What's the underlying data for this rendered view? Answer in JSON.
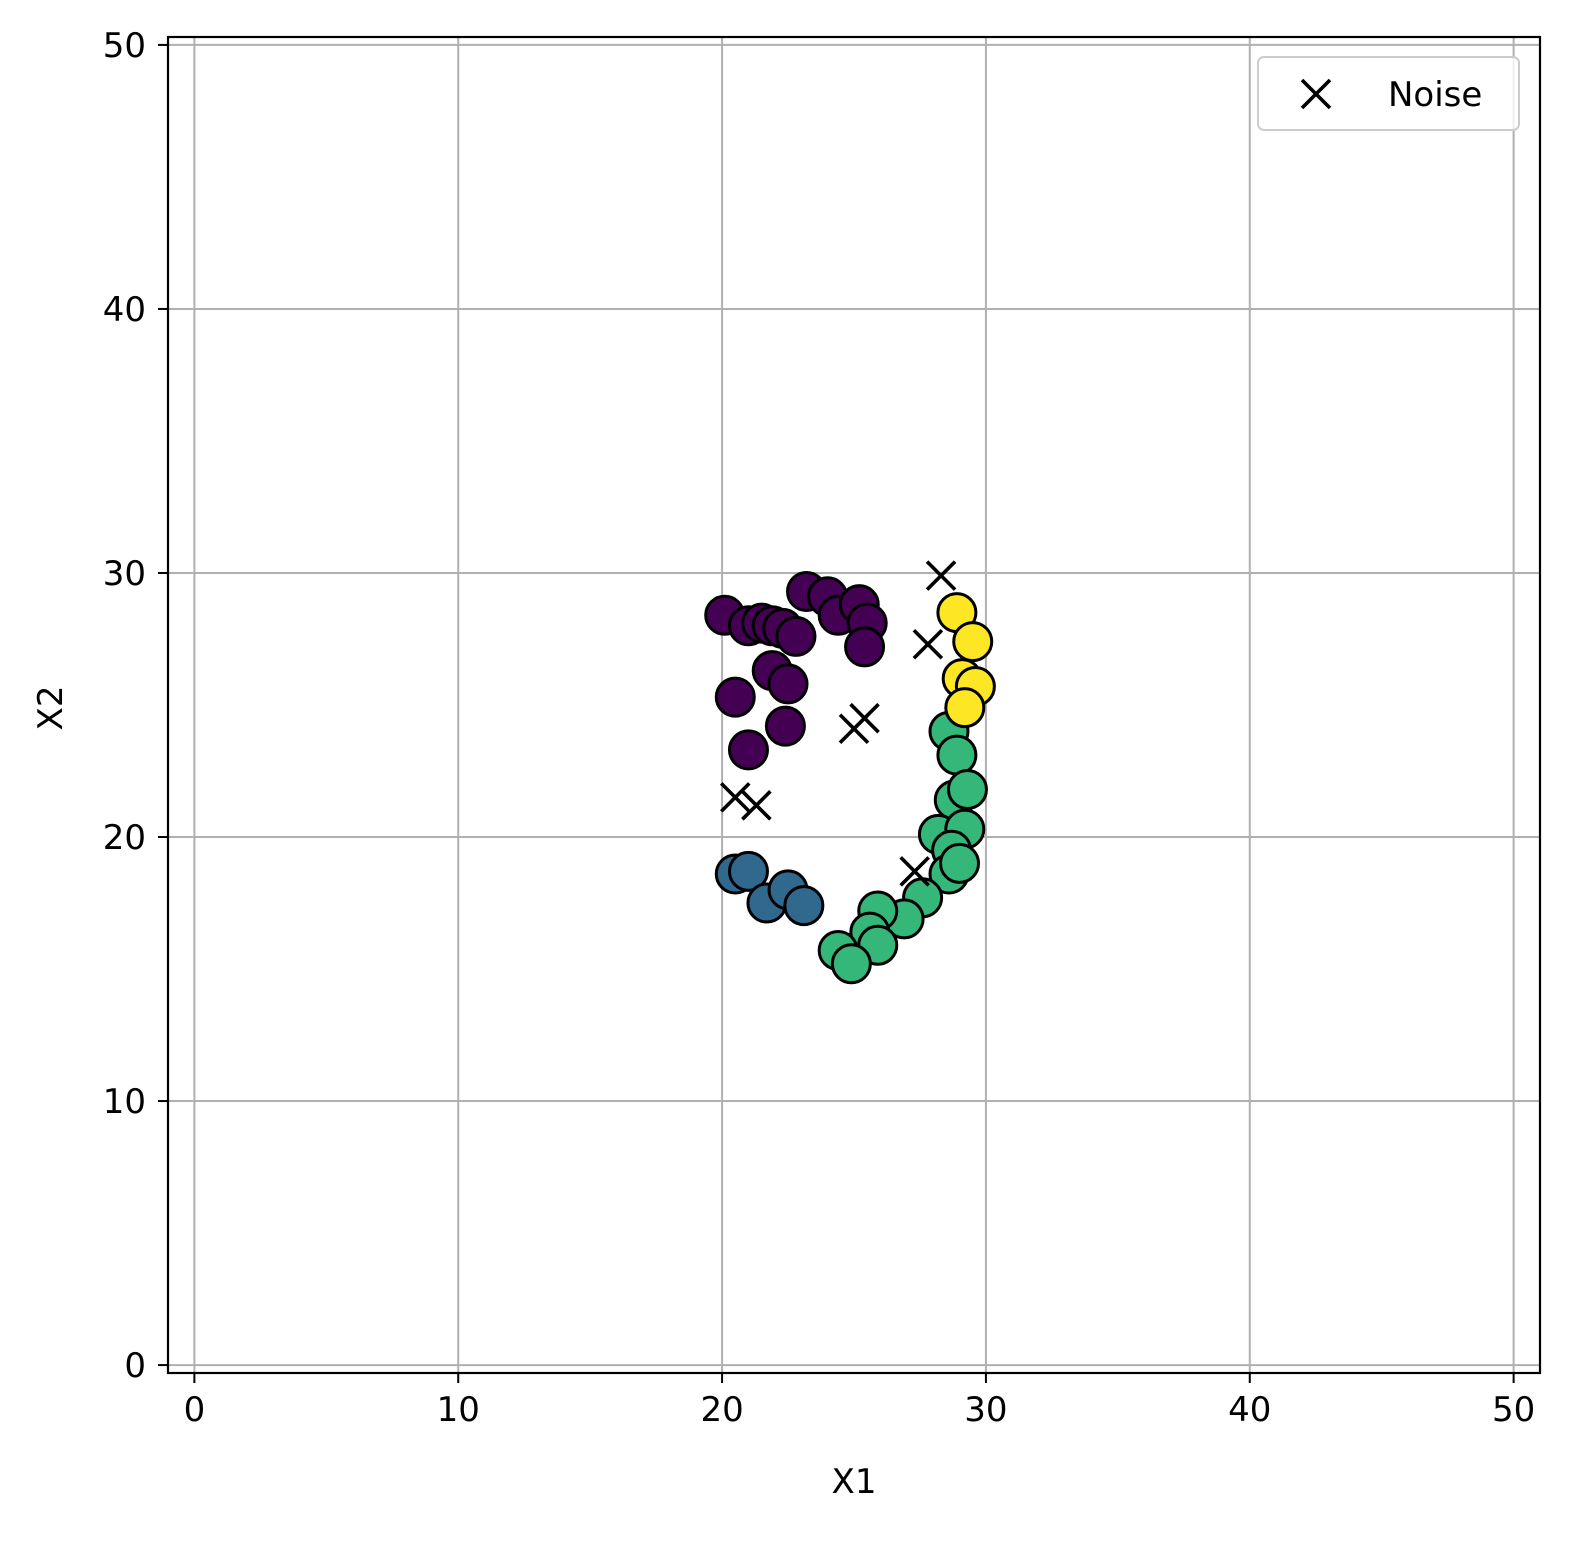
{
  "chart_data": {
    "type": "scatter",
    "title": "",
    "xlabel": "X1",
    "ylabel": "X2",
    "xlim": [
      -1,
      51
    ],
    "ylim": [
      -0.3,
      50.3
    ],
    "xticks": [
      0,
      10,
      20,
      30,
      40,
      50
    ],
    "yticks": [
      0,
      10,
      20,
      30,
      40,
      50
    ],
    "xtick_labels": [
      "0",
      "10",
      "20",
      "30",
      "40",
      "50"
    ],
    "ytick_labels": [
      "0",
      "10",
      "20",
      "30",
      "40",
      "50"
    ],
    "grid": true,
    "legend": {
      "position": "top-right",
      "entries": [
        {
          "label": "Noise",
          "marker": "x",
          "color": "#000000"
        }
      ]
    },
    "clusters": [
      {
        "color": "#440154",
        "points": [
          [
            20.1,
            28.4
          ],
          [
            21.0,
            28.0
          ],
          [
            21.5,
            28.1
          ],
          [
            21.9,
            28.0
          ],
          [
            22.3,
            27.9
          ],
          [
            22.8,
            27.6
          ],
          [
            23.2,
            29.3
          ],
          [
            24.0,
            29.1
          ],
          [
            24.4,
            28.4
          ],
          [
            25.2,
            28.8
          ],
          [
            25.5,
            28.1
          ],
          [
            25.4,
            27.2
          ],
          [
            21.9,
            26.3
          ],
          [
            22.5,
            25.8
          ],
          [
            20.5,
            25.3
          ],
          [
            22.4,
            24.2
          ],
          [
            21.0,
            23.3
          ]
        ]
      },
      {
        "color": "#31688e",
        "points": [
          [
            20.5,
            18.6
          ],
          [
            21.0,
            18.7
          ],
          [
            21.7,
            17.5
          ],
          [
            22.5,
            18.0
          ],
          [
            23.1,
            17.4
          ]
        ]
      },
      {
        "color": "#35b779",
        "points": [
          [
            28.6,
            24.0
          ],
          [
            28.9,
            23.1
          ],
          [
            28.8,
            21.4
          ],
          [
            29.3,
            21.8
          ],
          [
            28.2,
            20.1
          ],
          [
            29.2,
            20.3
          ],
          [
            28.7,
            19.5
          ],
          [
            28.6,
            18.6
          ],
          [
            29.0,
            19.0
          ],
          [
            27.6,
            17.7
          ],
          [
            26.9,
            16.9
          ],
          [
            25.9,
            17.2
          ],
          [
            25.6,
            16.4
          ],
          [
            25.9,
            15.9
          ],
          [
            24.4,
            15.7
          ],
          [
            24.9,
            15.2
          ]
        ]
      },
      {
        "color": "#fde725",
        "points": [
          [
            28.9,
            28.5
          ],
          [
            29.5,
            27.4
          ],
          [
            29.1,
            26.0
          ],
          [
            29.6,
            25.7
          ],
          [
            29.2,
            24.9
          ]
        ]
      }
    ],
    "series": [
      {
        "name": "Noise",
        "marker": "x",
        "color": "#000000",
        "points": [
          [
            28.3,
            29.9
          ],
          [
            27.8,
            27.3
          ],
          [
            25.4,
            24.5
          ],
          [
            25.0,
            24.1
          ],
          [
            20.5,
            21.5
          ],
          [
            21.3,
            21.2
          ],
          [
            27.3,
            18.7
          ]
        ]
      }
    ]
  }
}
